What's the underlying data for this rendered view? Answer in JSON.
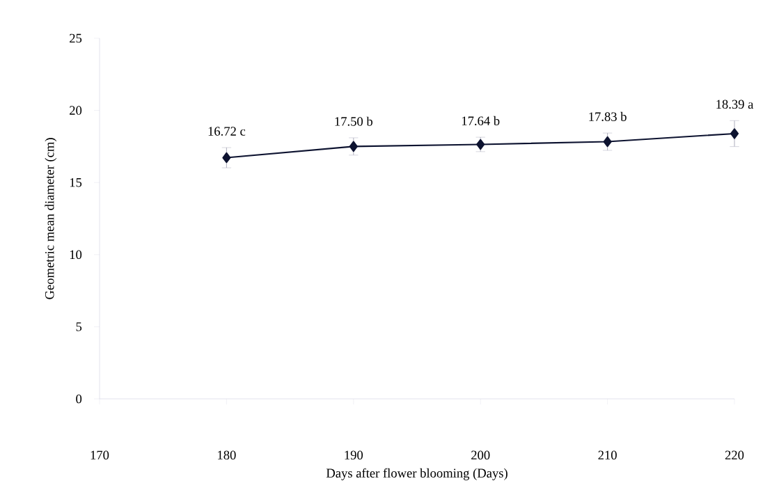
{
  "chart_data": {
    "type": "line",
    "xlabel": "Days after flower blooming (Days)",
    "ylabel": "Geometric mean diameter (cm)",
    "x": [
      180,
      190,
      200,
      210,
      220
    ],
    "values": [
      16.72,
      17.5,
      17.64,
      17.83,
      18.39
    ],
    "errors": [
      0.7,
      0.6,
      0.5,
      0.6,
      0.9
    ],
    "value_labels": [
      "16.72 c",
      "17.50 b",
      "17.64 b",
      "17.83 b",
      "18.39 a"
    ],
    "color": "#0d1330",
    "marker": "diamond",
    "line_style": "solid",
    "xlim": [
      170,
      220
    ],
    "xticks": [
      170,
      180,
      190,
      200,
      210,
      220
    ],
    "ylim": [
      0,
      25
    ],
    "yticks": [
      0,
      5,
      10,
      15,
      20,
      25
    ]
  }
}
